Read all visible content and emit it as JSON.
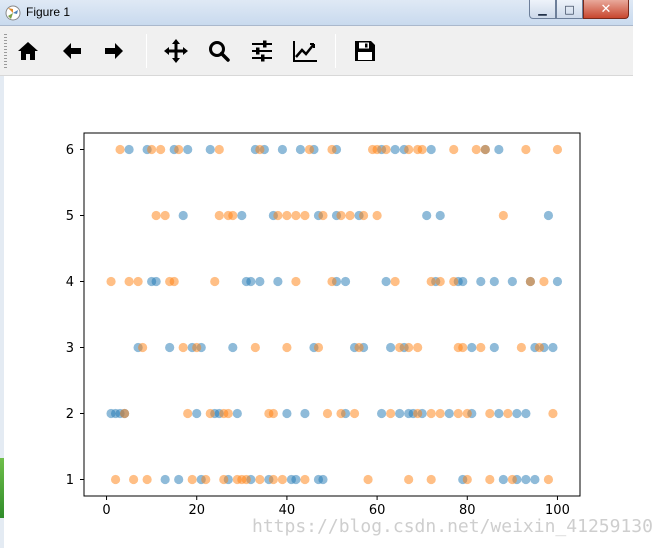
{
  "window": {
    "title": "Figure 1",
    "minimize_label": "▁",
    "maximize_label": "□",
    "close_label": "✕"
  },
  "toolbar": {
    "items": [
      {
        "name": "home",
        "icon": "home-icon"
      },
      {
        "name": "back",
        "icon": "arrow-left-icon"
      },
      {
        "name": "forward",
        "icon": "arrow-right-icon"
      },
      {
        "name": "pan",
        "icon": "move-icon"
      },
      {
        "name": "zoom",
        "icon": "magnifier-icon"
      },
      {
        "name": "subplots",
        "icon": "sliders-icon"
      },
      {
        "name": "edit-axis",
        "icon": "line-chart-icon"
      },
      {
        "name": "save",
        "icon": "floppy-disk-icon"
      }
    ]
  },
  "colors": {
    "series_blue": "#1f77b4",
    "series_orange": "#ff7f0e"
  },
  "chart_data": {
    "type": "scatter",
    "xlim": [
      -5,
      105
    ],
    "ylim": [
      0.75,
      6.25
    ],
    "xticks": [
      0,
      20,
      40,
      60,
      80,
      100
    ],
    "yticks": [
      1,
      2,
      3,
      4,
      5,
      6
    ],
    "alpha": 0.5,
    "series": [
      {
        "color": "#1f77b4",
        "points": [
          [
            5,
            6
          ],
          [
            9,
            6
          ],
          [
            15,
            6
          ],
          [
            18,
            6
          ],
          [
            23,
            6
          ],
          [
            33,
            6
          ],
          [
            35,
            6
          ],
          [
            39,
            6
          ],
          [
            43,
            6
          ],
          [
            46,
            6
          ],
          [
            51,
            6
          ],
          [
            61,
            6
          ],
          [
            64,
            6
          ],
          [
            66,
            6
          ],
          [
            72,
            6
          ],
          [
            84,
            6
          ],
          [
            87,
            6
          ],
          [
            17,
            5
          ],
          [
            30,
            5
          ],
          [
            37,
            5
          ],
          [
            47,
            5
          ],
          [
            51,
            5
          ],
          [
            56,
            5
          ],
          [
            71,
            5
          ],
          [
            74,
            5
          ],
          [
            98,
            5
          ],
          [
            10,
            4
          ],
          [
            11,
            4
          ],
          [
            31,
            4
          ],
          [
            32,
            4
          ],
          [
            34,
            4
          ],
          [
            38,
            4
          ],
          [
            51,
            4
          ],
          [
            53,
            4
          ],
          [
            62,
            4
          ],
          [
            73,
            4
          ],
          [
            78,
            4
          ],
          [
            79,
            4
          ],
          [
            83,
            4
          ],
          [
            86,
            4
          ],
          [
            90,
            4
          ],
          [
            94,
            4
          ],
          [
            100,
            4
          ],
          [
            7,
            3
          ],
          [
            14,
            3
          ],
          [
            19,
            3
          ],
          [
            21,
            3
          ],
          [
            28,
            3
          ],
          [
            46,
            3
          ],
          [
            55,
            3
          ],
          [
            57,
            3
          ],
          [
            63,
            3
          ],
          [
            66,
            3
          ],
          [
            81,
            3
          ],
          [
            86,
            3
          ],
          [
            95,
            3
          ],
          [
            97,
            3
          ],
          [
            99,
            3
          ],
          [
            1,
            2
          ],
          [
            2,
            2
          ],
          [
            3,
            2
          ],
          [
            4,
            2
          ],
          [
            20,
            2
          ],
          [
            24,
            2
          ],
          [
            25,
            2
          ],
          [
            29,
            2
          ],
          [
            40,
            2
          ],
          [
            44,
            2
          ],
          [
            53,
            2
          ],
          [
            61,
            2
          ],
          [
            65,
            2
          ],
          [
            67,
            2
          ],
          [
            68,
            2
          ],
          [
            70,
            2
          ],
          [
            76,
            2
          ],
          [
            81,
            2
          ],
          [
            87,
            2
          ],
          [
            91,
            2
          ],
          [
            93,
            2
          ],
          [
            13,
            1
          ],
          [
            16,
            1
          ],
          [
            21,
            1
          ],
          [
            27,
            1
          ],
          [
            32,
            1
          ],
          [
            36,
            1
          ],
          [
            41,
            1
          ],
          [
            42,
            1
          ],
          [
            47,
            1
          ],
          [
            48,
            1
          ],
          [
            79,
            1
          ],
          [
            88,
            1
          ],
          [
            91,
            1
          ],
          [
            93,
            1
          ],
          [
            95,
            1
          ]
        ]
      },
      {
        "color": "#ff7f0e",
        "points": [
          [
            3,
            6
          ],
          [
            10,
            6
          ],
          [
            12,
            6
          ],
          [
            16,
            6
          ],
          [
            25,
            6
          ],
          [
            34,
            6
          ],
          [
            45,
            6
          ],
          [
            50,
            6
          ],
          [
            59,
            6
          ],
          [
            60,
            6
          ],
          [
            62,
            6
          ],
          [
            67,
            6
          ],
          [
            69,
            6
          ],
          [
            70,
            6
          ],
          [
            77,
            6
          ],
          [
            82,
            6
          ],
          [
            84,
            6
          ],
          [
            93,
            6
          ],
          [
            100,
            6
          ],
          [
            11,
            5
          ],
          [
            13,
            5
          ],
          [
            25,
            5
          ],
          [
            27,
            5
          ],
          [
            28,
            5
          ],
          [
            38,
            5
          ],
          [
            40,
            5
          ],
          [
            42,
            5
          ],
          [
            44,
            5
          ],
          [
            48,
            5
          ],
          [
            52,
            5
          ],
          [
            54,
            5
          ],
          [
            57,
            5
          ],
          [
            60,
            5
          ],
          [
            88,
            5
          ],
          [
            1,
            4
          ],
          [
            5,
            4
          ],
          [
            7,
            4
          ],
          [
            14,
            4
          ],
          [
            15,
            4
          ],
          [
            24,
            4
          ],
          [
            42,
            4
          ],
          [
            50,
            4
          ],
          [
            64,
            4
          ],
          [
            72,
            4
          ],
          [
            74,
            4
          ],
          [
            77,
            4
          ],
          [
            94,
            4
          ],
          [
            97,
            4
          ],
          [
            8,
            3
          ],
          [
            17,
            3
          ],
          [
            20,
            3
          ],
          [
            33,
            3
          ],
          [
            40,
            3
          ],
          [
            47,
            3
          ],
          [
            56,
            3
          ],
          [
            65,
            3
          ],
          [
            67,
            3
          ],
          [
            69,
            3
          ],
          [
            78,
            3
          ],
          [
            79,
            3
          ],
          [
            83,
            3
          ],
          [
            92,
            3
          ],
          [
            96,
            3
          ],
          [
            4,
            2
          ],
          [
            18,
            2
          ],
          [
            23,
            2
          ],
          [
            26,
            2
          ],
          [
            27,
            2
          ],
          [
            36,
            2
          ],
          [
            37,
            2
          ],
          [
            49,
            2
          ],
          [
            52,
            2
          ],
          [
            55,
            2
          ],
          [
            63,
            2
          ],
          [
            69,
            2
          ],
          [
            72,
            2
          ],
          [
            74,
            2
          ],
          [
            78,
            2
          ],
          [
            80,
            2
          ],
          [
            85,
            2
          ],
          [
            89,
            2
          ],
          [
            99,
            2
          ],
          [
            2,
            1
          ],
          [
            6,
            1
          ],
          [
            9,
            1
          ],
          [
            19,
            1
          ],
          [
            22,
            1
          ],
          [
            26,
            1
          ],
          [
            29,
            1
          ],
          [
            30,
            1
          ],
          [
            31,
            1
          ],
          [
            34,
            1
          ],
          [
            37,
            1
          ],
          [
            39,
            1
          ],
          [
            44,
            1
          ],
          [
            58,
            1
          ],
          [
            67,
            1
          ],
          [
            72,
            1
          ],
          [
            80,
            1
          ],
          [
            85,
            1
          ],
          [
            90,
            1
          ],
          [
            98,
            1
          ]
        ]
      }
    ]
  },
  "watermark": "https://blog.csdn.net/weixin_41259130"
}
